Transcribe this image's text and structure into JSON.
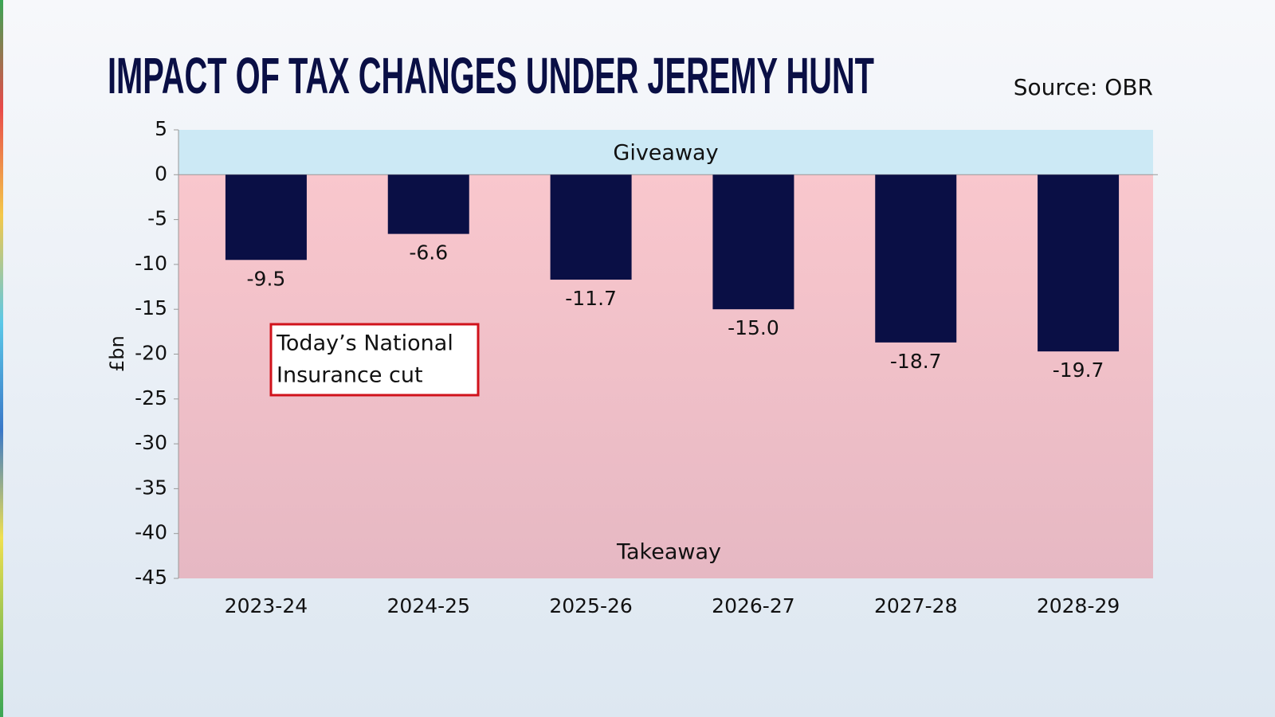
{
  "chart_data": {
    "type": "bar",
    "title": "IMPACT OF TAX CHANGES UNDER JEREMY HUNT",
    "source": "Source: OBR",
    "y_label": "£bn",
    "categories": [
      "2023-24",
      "2024-25",
      "2025-26",
      "2026-27",
      "2027-28",
      "2028-29"
    ],
    "values": [
      -9.5,
      -6.6,
      -11.7,
      -15.0,
      -18.7,
      -19.7
    ],
    "value_labels": [
      "-9.5",
      "-6.6",
      "-11.7",
      "-15.0",
      "-18.7",
      "-19.7"
    ],
    "color": "#0a0f45",
    "ylim": [
      -45,
      5
    ],
    "yticks": [
      -45,
      -40,
      -35,
      -30,
      -25,
      -20,
      -15,
      -10,
      -5,
      0,
      5
    ],
    "annotations": {
      "positive_region": "Giveaway",
      "negative_region": "Takeaway",
      "note": [
        "Today’s National",
        "Insurance cut"
      ]
    }
  }
}
